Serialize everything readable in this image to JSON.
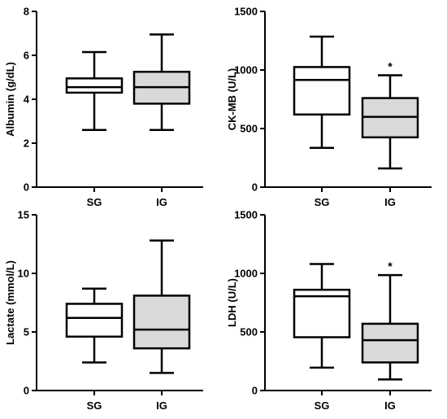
{
  "chart_data": [
    {
      "type": "boxplot",
      "ylabel": "Albumin (g/dL)",
      "ylim": [
        0,
        8
      ],
      "yticks": [
        0,
        2,
        4,
        6,
        8
      ],
      "categories": [
        "SG",
        "IG"
      ],
      "boxes": [
        {
          "category": "SG",
          "min": 2.6,
          "q1": 4.3,
          "median": 4.55,
          "q3": 4.95,
          "max": 6.15,
          "fill": "#ffffff"
        },
        {
          "category": "IG",
          "min": 2.6,
          "q1": 3.8,
          "median": 4.55,
          "q3": 5.25,
          "max": 6.95,
          "fill": "#d9d9d9"
        }
      ],
      "annotations": []
    },
    {
      "type": "boxplot",
      "ylabel": "CK-MB (U/L)",
      "ylim": [
        0,
        1500
      ],
      "yticks": [
        0,
        500,
        1000,
        1500
      ],
      "categories": [
        "SG",
        "IG"
      ],
      "boxes": [
        {
          "category": "SG",
          "min": 335,
          "q1": 620,
          "median": 915,
          "q3": 1025,
          "max": 1285,
          "fill": "#ffffff"
        },
        {
          "category": "IG",
          "min": 160,
          "q1": 425,
          "median": 600,
          "q3": 760,
          "max": 955,
          "fill": "#d9d9d9"
        }
      ],
      "annotations": [
        {
          "category": "IG",
          "text": "*"
        }
      ]
    },
    {
      "type": "boxplot",
      "ylabel": "Lactate (mmol/L)",
      "ylim": [
        0,
        15
      ],
      "yticks": [
        0,
        5,
        10,
        15
      ],
      "categories": [
        "SG",
        "IG"
      ],
      "boxes": [
        {
          "category": "SG",
          "min": 2.4,
          "q1": 4.6,
          "median": 6.2,
          "q3": 7.4,
          "max": 8.7,
          "fill": "#ffffff"
        },
        {
          "category": "IG",
          "min": 1.5,
          "q1": 3.6,
          "median": 5.2,
          "q3": 8.1,
          "max": 12.8,
          "fill": "#d9d9d9"
        }
      ],
      "annotations": []
    },
    {
      "type": "boxplot",
      "ylabel": "LDH (U/L)",
      "ylim": [
        0,
        1500
      ],
      "yticks": [
        0,
        500,
        1000,
        1500
      ],
      "categories": [
        "SG",
        "IG"
      ],
      "boxes": [
        {
          "category": "SG",
          "min": 195,
          "q1": 455,
          "median": 805,
          "q3": 860,
          "max": 1080,
          "fill": "#ffffff"
        },
        {
          "category": "IG",
          "min": 95,
          "q1": 240,
          "median": 430,
          "q3": 570,
          "max": 985,
          "fill": "#d9d9d9"
        }
      ],
      "annotations": [
        {
          "category": "IG",
          "text": "*"
        }
      ]
    }
  ]
}
